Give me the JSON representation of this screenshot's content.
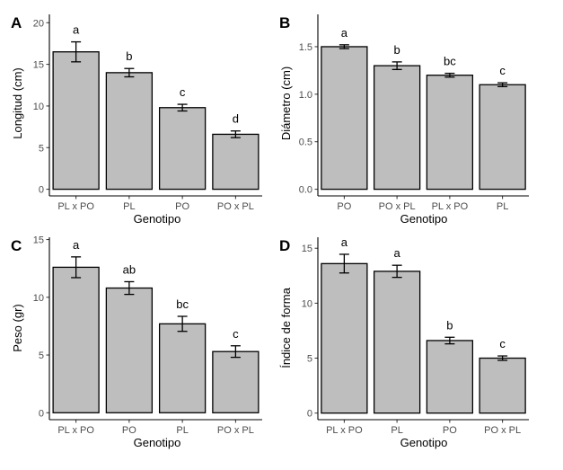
{
  "chart_data": [
    {
      "type": "bar",
      "panel": "A",
      "categories": [
        "PL x PO",
        "PL",
        "PO",
        "PO x PL"
      ],
      "values": [
        16.5,
        14.0,
        9.8,
        6.6
      ],
      "errors": [
        1.2,
        0.5,
        0.4,
        0.4
      ],
      "significance": [
        "a",
        "b",
        "c",
        "d"
      ],
      "xlabel": "Genotipo",
      "ylabel": "Longitud (cm)",
      "ylim": [
        -0.8,
        21
      ],
      "yticks": [
        0,
        5,
        10,
        15,
        20
      ],
      "ytick_labels": [
        "0",
        "5",
        "10",
        "15",
        "20"
      ],
      "bar_color": "#bebebe",
      "grid": false
    },
    {
      "type": "bar",
      "panel": "B",
      "categories": [
        "PO",
        "PO x PL",
        "PL x PO",
        "PL"
      ],
      "values": [
        1.5,
        1.3,
        1.2,
        1.1
      ],
      "errors": [
        0.02,
        0.04,
        0.02,
        0.02
      ],
      "significance": [
        "a",
        "b",
        "bc",
        "c"
      ],
      "xlabel": "Genotipo",
      "ylabel": "Diámetro (cm)",
      "ylim": [
        -0.07,
        1.84
      ],
      "yticks": [
        0,
        0.5,
        1.0,
        1.5
      ],
      "ytick_labels": [
        "0.0",
        "0.5",
        "1.0",
        "1.5"
      ],
      "bar_color": "#bebebe",
      "grid": false
    },
    {
      "type": "bar",
      "panel": "C",
      "categories": [
        "PL x PO",
        "PO",
        "PL",
        "PO x PL"
      ],
      "values": [
        12.6,
        10.8,
        7.7,
        5.3
      ],
      "errors": [
        0.9,
        0.55,
        0.65,
        0.5
      ],
      "significance": [
        "a",
        "ab",
        "bc",
        "c"
      ],
      "xlabel": "Genotipo",
      "ylabel": "Peso (gr)",
      "ylim": [
        -0.6,
        15.2
      ],
      "yticks": [
        0,
        5,
        10,
        15
      ],
      "ytick_labels": [
        "0",
        "5",
        "10",
        "15"
      ],
      "bar_color": "#bebebe",
      "grid": false
    },
    {
      "type": "bar",
      "panel": "D",
      "categories": [
        "PL x PO",
        "PL",
        "PO",
        "PO x PL"
      ],
      "values": [
        13.6,
        12.9,
        6.6,
        5.0
      ],
      "errors": [
        0.85,
        0.55,
        0.3,
        0.2
      ],
      "significance": [
        "a",
        "a",
        "b",
        "c"
      ],
      "xlabel": "Genotipo",
      "ylabel": "Índice de forma",
      "ylim": [
        -0.6,
        16.0
      ],
      "yticks": [
        0,
        5,
        10,
        15
      ],
      "ytick_labels": [
        "0",
        "5",
        "10",
        "15"
      ],
      "bar_color": "#bebebe",
      "grid": false
    }
  ]
}
